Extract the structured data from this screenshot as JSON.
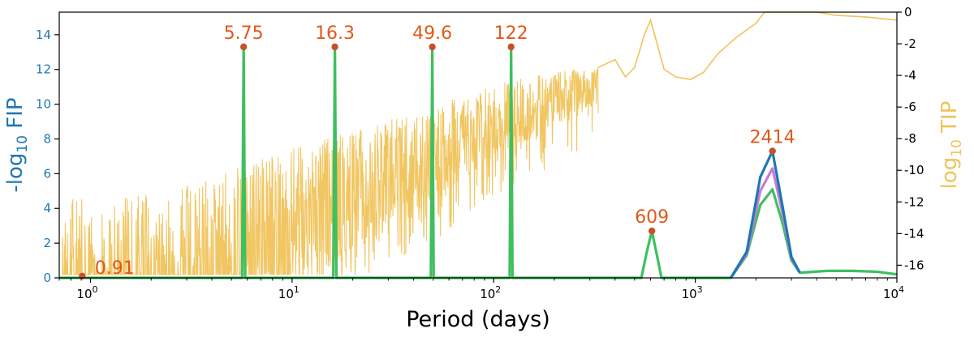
{
  "chart_data": {
    "type": "line",
    "xlabel": "Period (days)",
    "xscale": "log",
    "xlim": [
      0.7,
      10000
    ],
    "x_ticks": [
      {
        "value": 1,
        "base": "10",
        "exp": "0"
      },
      {
        "value": 10,
        "base": "10",
        "exp": "1"
      },
      {
        "value": 100,
        "base": "10",
        "exp": "2"
      },
      {
        "value": 1000,
        "base": "10",
        "exp": "3"
      },
      {
        "value": 10000,
        "base": "10",
        "exp": "4"
      }
    ],
    "ylabel_left": {
      "prefix": "-log",
      "sub": "10",
      "suffix": " FIP"
    },
    "ylim_left": [
      0,
      15.3
    ],
    "yticks_left": [
      "0",
      "2",
      "4",
      "6",
      "8",
      "10",
      "12",
      "14"
    ],
    "ylabel_right": {
      "prefix": "log",
      "sub": "10",
      "suffix": " TIP"
    },
    "ylim_right": [
      -16.8,
      0
    ],
    "yticks_right": [
      "0",
      "-2",
      "-4",
      "-6",
      "-8",
      "-10",
      "-12",
      "-14",
      "-16"
    ],
    "colors": {
      "fip_blue": "#1f77b4",
      "tip_yellow": "#f0c35a",
      "green": "#3fbf5f",
      "magenta": "#c97ad6",
      "label_orange": "#e05a1b",
      "axis_left": "#1f77b4",
      "axis_right": "#e8b32e"
    },
    "peaks": [
      {
        "label": "0.91",
        "period": 0.91,
        "fip": 0.1
      },
      {
        "label": "5.75",
        "period": 5.75,
        "fip": 13.3
      },
      {
        "label": "16.3",
        "period": 16.3,
        "fip": 13.3
      },
      {
        "label": "49.6",
        "period": 49.6,
        "fip": 13.3
      },
      {
        "label": "122",
        "period": 122,
        "fip": 13.3
      },
      {
        "label": "609",
        "period": 609,
        "fip": 2.7
      },
      {
        "label": "2414",
        "period": 2414,
        "fip": 7.3
      }
    ],
    "series": [
      {
        "color": "#3fbf5f",
        "points": [
          [
            0.7,
            0
          ],
          [
            5.65,
            0
          ],
          [
            5.75,
            13.3
          ],
          [
            5.85,
            0
          ],
          [
            16.0,
            0
          ],
          [
            16.3,
            13.3
          ],
          [
            16.6,
            0
          ],
          [
            48.8,
            0
          ],
          [
            49.6,
            13.3
          ],
          [
            50.4,
            0
          ],
          [
            120,
            0
          ],
          [
            122,
            13.3
          ],
          [
            124,
            0
          ],
          [
            540,
            0
          ],
          [
            575,
            1.5
          ],
          [
            609,
            2.7
          ],
          [
            640,
            1.5
          ],
          [
            680,
            0
          ],
          [
            1500,
            0
          ],
          [
            1800,
            1.3
          ],
          [
            2100,
            4.2
          ],
          [
            2414,
            5.1
          ],
          [
            2700,
            3.2
          ],
          [
            3000,
            1.0
          ],
          [
            3300,
            0.3
          ],
          [
            4500,
            0.4
          ],
          [
            6000,
            0.4
          ],
          [
            8000,
            0.35
          ],
          [
            10000,
            0.2
          ]
        ]
      },
      {
        "color": "#c97ad6",
        "points": [
          [
            1500,
            0
          ],
          [
            1800,
            1.4
          ],
          [
            2100,
            5.0
          ],
          [
            2414,
            6.3
          ],
          [
            2700,
            3.8
          ],
          [
            3000,
            1.1
          ],
          [
            3300,
            0.3
          ]
        ]
      },
      {
        "color": "#1f77b4",
        "points": [
          [
            1500,
            0
          ],
          [
            1800,
            1.5
          ],
          [
            2100,
            5.8
          ],
          [
            2414,
            7.3
          ],
          [
            2700,
            4.2
          ],
          [
            3000,
            1.2
          ],
          [
            3300,
            0.3
          ]
        ]
      }
    ],
    "tip_envelope": [
      [
        0.7,
        -11.8
      ],
      [
        2,
        -11.5
      ],
      [
        5,
        -10
      ],
      [
        10,
        -8.5
      ],
      [
        20,
        -7.5
      ],
      [
        50,
        -6
      ],
      [
        100,
        -4.5
      ],
      [
        200,
        -3.8
      ],
      [
        400,
        -3.2
      ]
    ],
    "tip_smooth": [
      [
        330,
        -3.5
      ],
      [
        400,
        -3.0
      ],
      [
        450,
        -4.1
      ],
      [
        500,
        -3.5
      ],
      [
        560,
        -1.4
      ],
      [
        600,
        -0.5
      ],
      [
        640,
        -1.8
      ],
      [
        700,
        -3.6
      ],
      [
        800,
        -4.1
      ],
      [
        950,
        -4.25
      ],
      [
        1100,
        -3.8
      ],
      [
        1300,
        -2.6
      ],
      [
        1600,
        -1.6
      ],
      [
        2000,
        -0.7
      ],
      [
        2200,
        0
      ],
      [
        4000,
        0
      ],
      [
        5000,
        -0.2
      ],
      [
        7000,
        -0.3
      ],
      [
        10000,
        -0.5
      ]
    ]
  }
}
